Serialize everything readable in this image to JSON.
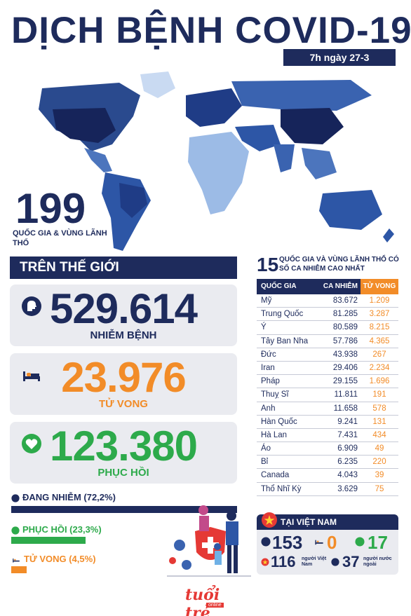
{
  "header": {
    "title": "DỊCH BỆNH COVID-19",
    "date": "7h ngày 27-3"
  },
  "map": {
    "count": "199",
    "count_label": "QUỐC GIA & VÙNG LÃNH THỔ"
  },
  "world": {
    "header": "TRÊN THẾ GIỚI",
    "infected": {
      "value": "529.614",
      "label": "NHIỄM BỆNH",
      "color": "#1e2b5c",
      "icon": "person-head-icon"
    },
    "deaths": {
      "value": "23.976",
      "label": "TỬ VONG",
      "color": "#f28c28",
      "icon": "bed-icon"
    },
    "recovered": {
      "value": "123.380",
      "label": "PHỤC HỒI",
      "color": "#2daa4b",
      "icon": "heart-icon"
    }
  },
  "breakdown": {
    "active": {
      "label": "ĐANG NHIỄM (72,2%)",
      "fraction": 0.722
    },
    "recovered": {
      "label": "PHỤC HỒI (23,3%)",
      "fraction": 0.233
    },
    "deaths": {
      "label": "TỬ VONG (4,5%)",
      "fraction": 0.045
    }
  },
  "top15": {
    "number": "15",
    "title": "QUỐC GIA VÀ VÙNG LÃNH THỔ CÓ SỐ CA NHIỄM CAO NHẤT",
    "columns": [
      "QUỐC GIA",
      "CA NHIỄM",
      "TỬ VONG"
    ],
    "rows": [
      [
        "Mỹ",
        "83.672",
        "1.209"
      ],
      [
        "Trung Quốc",
        "81.285",
        "3.287"
      ],
      [
        "Ý",
        "80.589",
        "8.215"
      ],
      [
        "Tây Ban Nha",
        "57.786",
        "4.365"
      ],
      [
        "Đức",
        "43.938",
        "267"
      ],
      [
        "Iran",
        "29.406",
        "2.234"
      ],
      [
        "Pháp",
        "29.155",
        "1.696"
      ],
      [
        "Thuỵ Sĩ",
        "11.811",
        "191"
      ],
      [
        "Anh",
        "11.658",
        "578"
      ],
      [
        "Hàn Quốc",
        "9.241",
        "131"
      ],
      [
        "Hà Lan",
        "7.431",
        "434"
      ],
      [
        "Áo",
        "6.909",
        "49"
      ],
      [
        "Bỉ",
        "6.235",
        "220"
      ],
      [
        "Canada",
        "4.043",
        "39"
      ],
      [
        "Thổ Nhĩ Kỳ",
        "3.629",
        "75"
      ]
    ]
  },
  "vietnam": {
    "header": "TẠI VIỆT NAM",
    "infected": "153",
    "deaths": "0",
    "recovered": "17",
    "vietnamese": "116",
    "vietnamese_label": "người Việt Nam",
    "foreign": "37",
    "foreign_label": "người nước ngoài"
  },
  "logo": {
    "name": "tuổi trẻ",
    "sub": "online"
  },
  "colors": {
    "navy": "#1e2b5c",
    "orange": "#f28c28",
    "green": "#2daa4b",
    "red": "#e53935"
  }
}
